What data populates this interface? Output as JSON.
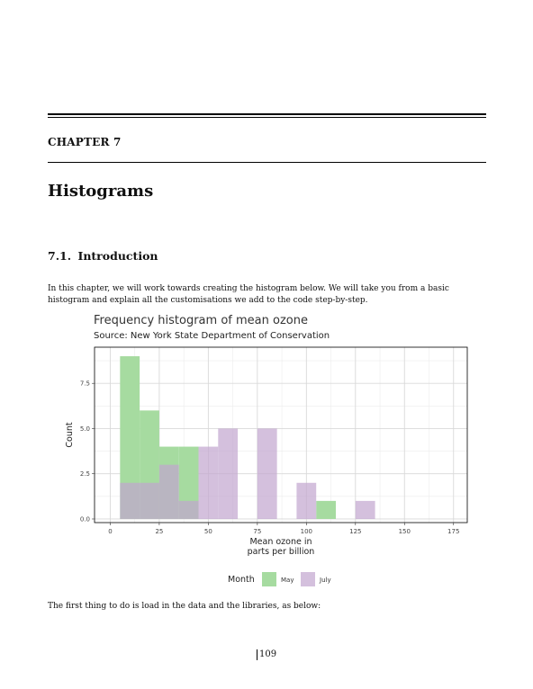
{
  "chapter": {
    "label": "CHAPTER 7",
    "title": "Histograms"
  },
  "section": {
    "number": "7.1.",
    "title": "Introduction"
  },
  "intro_text": "In this chapter, we will work towards creating the histogram below. We will take you from a basic histogram and explain all the customisations we add to the code step-by-step.",
  "after_text": "The first thing to do is load in the data and the libraries, as below:",
  "page_number": "109",
  "chart_data": {
    "type": "bar",
    "title": "Frequency histogram of mean ozone",
    "subtitle": "Source: New York State Department of Conservation",
    "xlabel_lines": [
      "Mean ozone in",
      "parts per billion"
    ],
    "ylabel": "Count",
    "xlim": [
      -8,
      182
    ],
    "ylim": [
      -0.2,
      9.5
    ],
    "x_ticks": [
      0,
      25,
      50,
      75,
      100,
      125,
      150,
      175
    ],
    "x_tick_labels": [
      "0",
      "25",
      "50",
      "75",
      "100",
      "125",
      "150",
      "175"
    ],
    "y_ticks": [
      0,
      2.5,
      5,
      7.5
    ],
    "y_tick_labels": [
      "0.0",
      "2.5",
      "5.0",
      "7.5"
    ],
    "grid": true,
    "bin_width": 10,
    "legend": {
      "title": "Month",
      "placement": "bottom"
    },
    "series": [
      {
        "name": "May",
        "color": "#a6dba0",
        "bins": [
          {
            "x0": 5,
            "x1": 15,
            "count": 9
          },
          {
            "x0": 15,
            "x1": 25,
            "count": 6
          },
          {
            "x0": 25,
            "x1": 35,
            "count": 4
          },
          {
            "x0": 35,
            "x1": 45,
            "count": 4
          },
          {
            "x0": 105,
            "x1": 115,
            "count": 1
          }
        ]
      },
      {
        "name": "July",
        "color": "#c2a5cf",
        "bins": [
          {
            "x0": 5,
            "x1": 15,
            "count": 2
          },
          {
            "x0": 15,
            "x1": 25,
            "count": 2
          },
          {
            "x0": 25,
            "x1": 35,
            "count": 3
          },
          {
            "x0": 35,
            "x1": 45,
            "count": 1
          },
          {
            "x0": 45,
            "x1": 55,
            "count": 4
          },
          {
            "x0": 55,
            "x1": 65,
            "count": 5
          },
          {
            "x0": 75,
            "x1": 85,
            "count": 5
          },
          {
            "x0": 95,
            "x1": 105,
            "count": 2
          },
          {
            "x0": 125,
            "x1": 135,
            "count": 1
          }
        ]
      }
    ]
  }
}
